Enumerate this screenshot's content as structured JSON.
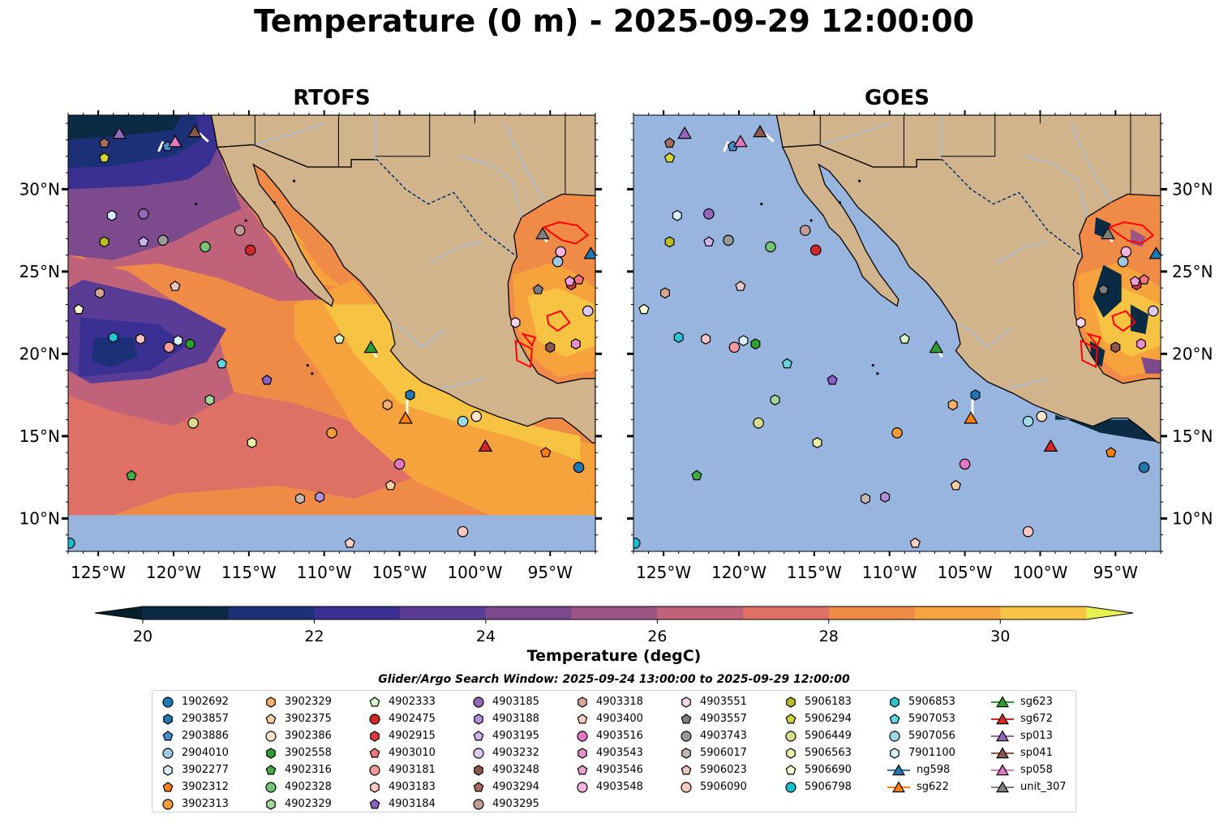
{
  "title": "Temperature (0 m) - 2025-09-29 12:00:00",
  "panels": [
    {
      "title": "RTOFS",
      "mode": "model"
    },
    {
      "title": "GOES",
      "mode": "satellite"
    }
  ],
  "axes": {
    "lon_range": [
      -127,
      -92
    ],
    "lat_range": [
      8,
      34.5
    ],
    "x_ticks": [
      {
        "value": -125,
        "label": "125°W"
      },
      {
        "value": -120,
        "label": "120°W"
      },
      {
        "value": -115,
        "label": "115°W"
      },
      {
        "value": -110,
        "label": "110°W"
      },
      {
        "value": -105,
        "label": "105°W"
      },
      {
        "value": -100,
        "label": "100°W"
      },
      {
        "value": -95,
        "label": "95°W"
      }
    ],
    "y_ticks": [
      {
        "value": 30,
        "label": "30°N"
      },
      {
        "value": 25,
        "label": "25°N"
      },
      {
        "value": 20,
        "label": "20°N"
      },
      {
        "value": 15,
        "label": "15°N"
      },
      {
        "value": 10,
        "label": "10°N"
      }
    ]
  },
  "colorbar": {
    "label": "Temperature (degC)",
    "range": [
      20,
      31
    ],
    "ticks": [
      20,
      22,
      24,
      26,
      28,
      30
    ],
    "colors": [
      "#0b2a44",
      "#1c3077",
      "#3a2f93",
      "#5a3c96",
      "#7d4a8e",
      "#9d5583",
      "#c0637a",
      "#de7066",
      "#ef8a47",
      "#f7a33d",
      "#f7c343"
    ],
    "extend_high_color": "#e8f050",
    "extend_low_color": "#06202e"
  },
  "colors": {
    "land": "#d2b48c",
    "ocean_no_data": "#98b5e0",
    "river": "#a8bcd5",
    "contour": "#ff0000"
  },
  "legend": {
    "search_window": "Glider/Argo Search Window: 2025-09-24 13:00:00 to 2025-09-29 12:00:00",
    "columns": [
      [
        {
          "id": "1902692",
          "shape": "circle",
          "color": "#1f77b4"
        },
        {
          "id": "2903857",
          "shape": "hexagon",
          "color": "#1f77b4"
        },
        {
          "id": "2903886",
          "shape": "pentagon",
          "color": "#4a8fcc"
        },
        {
          "id": "2904010",
          "shape": "circle",
          "color": "#9ecae1"
        },
        {
          "id": "3902277",
          "shape": "hexagon",
          "color": "#d6ecfa"
        },
        {
          "id": "3902312",
          "shape": "pentagon",
          "color": "#ff7f0e"
        },
        {
          "id": "3902313",
          "shape": "circle",
          "color": "#f39a3a"
        }
      ],
      [
        {
          "id": "3902329",
          "shape": "hexagon",
          "color": "#fdae6b"
        },
        {
          "id": "3902375",
          "shape": "pentagon",
          "color": "#fdd0a2"
        },
        {
          "id": "3902386",
          "shape": "circle",
          "color": "#fde3c8"
        },
        {
          "id": "3902558",
          "shape": "hexagon",
          "color": "#2ca02c"
        },
        {
          "id": "4902316",
          "shape": "pentagon",
          "color": "#3fae3f"
        },
        {
          "id": "4902328",
          "shape": "circle",
          "color": "#74c476"
        },
        {
          "id": "4902329",
          "shape": "hexagon",
          "color": "#a1d99b"
        }
      ],
      [
        {
          "id": "4902333",
          "shape": "pentagon",
          "color": "#d9f7c8"
        },
        {
          "id": "4902475",
          "shape": "circle",
          "color": "#d62728"
        },
        {
          "id": "4902915",
          "shape": "hexagon",
          "color": "#e0393b"
        },
        {
          "id": "4903010",
          "shape": "pentagon",
          "color": "#f4767a"
        },
        {
          "id": "4903181",
          "shape": "circle",
          "color": "#f49a9a"
        },
        {
          "id": "4903183",
          "shape": "hexagon",
          "color": "#fcc5c0"
        },
        {
          "id": "4903184",
          "shape": "pentagon",
          "color": "#8e5ec9"
        }
      ],
      [
        {
          "id": "4903185",
          "shape": "circle",
          "color": "#9467bd"
        },
        {
          "id": "4903188",
          "shape": "hexagon",
          "color": "#b190d8"
        },
        {
          "id": "4903195",
          "shape": "pentagon",
          "color": "#cdb3ec"
        },
        {
          "id": "4903232",
          "shape": "circle",
          "color": "#dcc8f2"
        },
        {
          "id": "4903248",
          "shape": "hexagon",
          "color": "#8c564b"
        },
        {
          "id": "4903294",
          "shape": "pentagon",
          "color": "#a66c5e"
        },
        {
          "id": "4903295",
          "shape": "circle",
          "color": "#c49c94"
        }
      ],
      [
        {
          "id": "4903318",
          "shape": "hexagon",
          "color": "#dba593"
        },
        {
          "id": "4903400",
          "shape": "pentagon",
          "color": "#f7d0c3"
        },
        {
          "id": "4903516",
          "shape": "circle",
          "color": "#e377c2"
        },
        {
          "id": "4903543",
          "shape": "hexagon",
          "color": "#e98fce"
        },
        {
          "id": "4903546",
          "shape": "pentagon",
          "color": "#f09ed8"
        },
        {
          "id": "4903548",
          "shape": "circle",
          "color": "#f7b6e2"
        }
      ],
      [
        {
          "id": "4903551",
          "shape": "hexagon",
          "color": "#fbd4ee"
        },
        {
          "id": "4903557",
          "shape": "pentagon",
          "color": "#7f7f7f"
        },
        {
          "id": "4903743",
          "shape": "circle",
          "color": "#999999"
        },
        {
          "id": "5906017",
          "shape": "hexagon",
          "color": "#c7b8b0"
        },
        {
          "id": "5906023",
          "shape": "pentagon",
          "color": "#e7c6c0"
        },
        {
          "id": "5906090",
          "shape": "circle",
          "color": "#fcc8c0"
        }
      ],
      [
        {
          "id": "5906183",
          "shape": "hexagon",
          "color": "#bcbd22"
        },
        {
          "id": "5906294",
          "shape": "pentagon",
          "color": "#d3d43a"
        },
        {
          "id": "5906449",
          "shape": "circle",
          "color": "#dbdb8d"
        },
        {
          "id": "5906563",
          "shape": "hexagon",
          "color": "#eef0a8"
        },
        {
          "id": "5906690",
          "shape": "pentagon",
          "color": "#fafad0"
        },
        {
          "id": "5906798",
          "shape": "circle",
          "color": "#17becf"
        }
      ],
      [
        {
          "id": "5906853",
          "shape": "hexagon",
          "color": "#29c4d3"
        },
        {
          "id": "5907053",
          "shape": "pentagon",
          "color": "#5fd6e2"
        },
        {
          "id": "5907056",
          "shape": "circle",
          "color": "#9edae5"
        },
        {
          "id": "7901100",
          "shape": "hexagon",
          "color": "#d8f3f7"
        },
        {
          "id": "ng598",
          "shape": "triangle-line",
          "color": "#1f77b4"
        },
        {
          "id": "sg622",
          "shape": "triangle-line",
          "color": "#ff7f0e"
        }
      ],
      [
        {
          "id": "sg623",
          "shape": "triangle-line",
          "color": "#2ca02c"
        },
        {
          "id": "sg672",
          "shape": "triangle-line",
          "color": "#d62728"
        },
        {
          "id": "sp013",
          "shape": "triangle-line",
          "color": "#9467bd"
        },
        {
          "id": "sp041",
          "shape": "triangle-line",
          "color": "#8c564b"
        },
        {
          "id": "sp058",
          "shape": "triangle-line",
          "color": "#e377c2"
        },
        {
          "id": "unit_307",
          "shape": "triangle-line",
          "color": "#7f7f7f"
        }
      ]
    ]
  },
  "observations": [
    {
      "id": "1902692",
      "lon": -93.1,
      "lat": 13.1
    },
    {
      "id": "2903857",
      "lon": -104.3,
      "lat": 17.5
    },
    {
      "id": "2903886",
      "lon": -120.4,
      "lat": 32.6
    },
    {
      "id": "2904010",
      "lon": -94.5,
      "lat": 25.6
    },
    {
      "id": "3902277",
      "lon": -124.1,
      "lat": 28.4
    },
    {
      "id": "3902312",
      "lon": -95.3,
      "lat": 14.0
    },
    {
      "id": "3902313",
      "lon": -109.5,
      "lat": 15.2
    },
    {
      "id": "3902329",
      "lon": -105.8,
      "lat": 16.9
    },
    {
      "id": "3902375",
      "lon": -105.6,
      "lat": 12.0
    },
    {
      "id": "3902386",
      "lon": -99.9,
      "lat": 16.2
    },
    {
      "id": "3902558",
      "lon": -118.9,
      "lat": 20.6
    },
    {
      "id": "4902316",
      "lon": -122.8,
      "lat": 12.6
    },
    {
      "id": "4902328",
      "lon": -117.9,
      "lat": 26.5
    },
    {
      "id": "4902329",
      "lon": -117.6,
      "lat": 17.2
    },
    {
      "id": "4902333",
      "lon": -109.0,
      "lat": 20.9
    },
    {
      "id": "4902475",
      "lon": -114.9,
      "lat": 26.3
    },
    {
      "id": "4902915",
      "lon": -93.6,
      "lat": 24.2
    },
    {
      "id": "4903010",
      "lon": -93.1,
      "lat": 24.5
    },
    {
      "id": "4903181",
      "lon": -120.3,
      "lat": 20.4
    },
    {
      "id": "4903183",
      "lon": -122.2,
      "lat": 20.9
    },
    {
      "id": "4903184",
      "lon": -113.8,
      "lat": 18.4
    },
    {
      "id": "4903185",
      "lon": -122.0,
      "lat": 28.5
    },
    {
      "id": "4903188",
      "lon": -110.3,
      "lat": 11.3
    },
    {
      "id": "4903195",
      "lon": -122.0,
      "lat": 26.8
    },
    {
      "id": "4903232",
      "lon": -92.5,
      "lat": 22.6
    },
    {
      "id": "4903248",
      "lon": -95.0,
      "lat": 20.4
    },
    {
      "id": "4903294",
      "lon": -124.6,
      "lat": 32.8
    },
    {
      "id": "4903295",
      "lon": -115.6,
      "lat": 27.5
    },
    {
      "id": "4903318",
      "lon": -124.9,
      "lat": 23.7
    },
    {
      "id": "4903400",
      "lon": -108.3,
      "lat": 8.5
    },
    {
      "id": "4903516",
      "lon": -105.0,
      "lat": 13.3
    },
    {
      "id": "4903543",
      "lon": -93.3,
      "lat": 20.6
    },
    {
      "id": "4903546",
      "lon": -93.7,
      "lat": 24.4
    },
    {
      "id": "4903548",
      "lon": -94.3,
      "lat": 26.2
    },
    {
      "id": "4903551",
      "lon": -97.3,
      "lat": 21.9
    },
    {
      "id": "4903557",
      "lon": -95.8,
      "lat": 23.9
    },
    {
      "id": "4903743",
      "lon": -120.7,
      "lat": 26.9
    },
    {
      "id": "5906017",
      "lon": -111.6,
      "lat": 11.2
    },
    {
      "id": "5906023",
      "lon": -119.9,
      "lat": 24.1
    },
    {
      "id": "5906090",
      "lon": -100.8,
      "lat": 9.2
    },
    {
      "id": "5906183",
      "lon": -124.6,
      "lat": 26.8
    },
    {
      "id": "5906294",
      "lon": -124.6,
      "lat": 31.9
    },
    {
      "id": "5906449",
      "lon": -118.7,
      "lat": 15.8
    },
    {
      "id": "5906563",
      "lon": -114.8,
      "lat": 14.6
    },
    {
      "id": "5906690",
      "lon": -126.3,
      "lat": 22.7
    },
    {
      "id": "5906798",
      "lon": -126.9,
      "lat": 8.5
    },
    {
      "id": "5906853",
      "lon": -124.0,
      "lat": 21.0
    },
    {
      "id": "5907053",
      "lon": -116.8,
      "lat": 19.4
    },
    {
      "id": "5907056",
      "lon": -100.8,
      "lat": 15.9
    },
    {
      "id": "7901100",
      "lon": -119.7,
      "lat": 20.8
    }
  ],
  "gliders": [
    {
      "id": "ng598",
      "lon": -92.3,
      "lat": 26.1
    },
    {
      "id": "sg622",
      "lon": -104.6,
      "lat": 16.1
    },
    {
      "id": "sg623",
      "lon": -106.9,
      "lat": 20.4
    },
    {
      "id": "sg672",
      "lon": -99.3,
      "lat": 14.4
    },
    {
      "id": "sp013",
      "lon": -123.6,
      "lat": 33.4
    },
    {
      "id": "sp041",
      "lon": -118.6,
      "lat": 33.5
    },
    {
      "id": "sp058",
      "lon": -119.9,
      "lat": 32.9
    },
    {
      "id": "unit_307",
      "lon": -95.5,
      "lat": 27.3
    }
  ]
}
